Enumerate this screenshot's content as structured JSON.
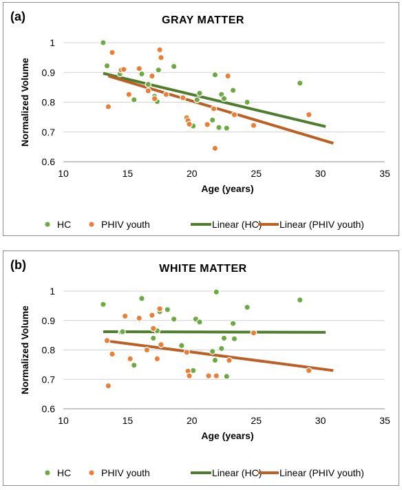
{
  "colors": {
    "hc": "#6aaa3e",
    "phiv": "#ed7d31",
    "hc_line": "#4e7d2c",
    "phiv_line": "#bd5e23",
    "grid": "#d0d0d0",
    "axis": "#8c8c8c"
  },
  "chart_data": [
    {
      "type": "scatter",
      "panel_label": "(a)",
      "title": "GRAY  MATTER",
      "xlabel": "Age (years)",
      "ylabel": "Normalized Volume",
      "xlim": [
        10,
        35
      ],
      "ylim": [
        0.6,
        1.0
      ],
      "x_ticks": [
        "10",
        "15",
        "20",
        "25",
        "30",
        "35"
      ],
      "y_ticks": [
        "0.6",
        "0.7",
        "0.8",
        "0.9",
        "1"
      ],
      "grid": "horizontal",
      "legend_position": "bottom",
      "legend": [
        "HC",
        "PHIV youth",
        "Linear (HC)",
        "Linear (PHIV youth)"
      ],
      "series": [
        {
          "name": "HC",
          "kind": "markers",
          "points": [
            [
              13.1,
              1.0
            ],
            [
              13.4,
              0.922
            ],
            [
              14.4,
              0.895
            ],
            [
              15.5,
              0.808
            ],
            [
              16.1,
              0.895
            ],
            [
              16.6,
              0.86
            ],
            [
              17.1,
              0.82
            ],
            [
              17.3,
              0.802
            ],
            [
              17.4,
              0.908
            ],
            [
              18.6,
              0.92
            ],
            [
              20.1,
              0.72
            ],
            [
              20.4,
              0.808
            ],
            [
              20.6,
              0.83
            ],
            [
              21.6,
              0.74
            ],
            [
              21.8,
              0.892
            ],
            [
              22.1,
              0.715
            ],
            [
              22.3,
              0.826
            ],
            [
              22.5,
              0.812
            ],
            [
              22.7,
              0.713
            ],
            [
              23.2,
              0.84
            ],
            [
              24.3,
              0.8
            ],
            [
              28.4,
              0.864
            ]
          ]
        },
        {
          "name": "PHIV youth",
          "kind": "markers",
          "points": [
            [
              13.5,
              0.785
            ],
            [
              13.8,
              0.967
            ],
            [
              14.5,
              0.908
            ],
            [
              14.7,
              0.91
            ],
            [
              15.1,
              0.826
            ],
            [
              15.9,
              0.913
            ],
            [
              16.6,
              0.838
            ],
            [
              16.9,
              0.888
            ],
            [
              17.1,
              0.812
            ],
            [
              17.5,
              0.976
            ],
            [
              17.6,
              0.95
            ],
            [
              18.0,
              0.826
            ],
            [
              19.3,
              0.815
            ],
            [
              19.6,
              0.748
            ],
            [
              19.7,
              0.738
            ],
            [
              19.8,
              0.726
            ],
            [
              21.2,
              0.725
            ],
            [
              21.7,
              0.778
            ],
            [
              21.8,
              0.645
            ],
            [
              22.8,
              0.888
            ],
            [
              23.3,
              0.758
            ],
            [
              24.8,
              0.722
            ],
            [
              29.1,
              0.758
            ]
          ]
        },
        {
          "name": "Linear (HC)",
          "kind": "line",
          "points": [
            [
              13.1,
              0.897
            ],
            [
              30.4,
              0.718
            ]
          ]
        },
        {
          "name": "Linear (PHIV youth)",
          "kind": "line",
          "points": [
            [
              13.5,
              0.888
            ],
            [
              31.0,
              0.662
            ]
          ]
        }
      ]
    },
    {
      "type": "scatter",
      "panel_label": "(b)",
      "title": "WHITE  MATTER",
      "xlabel": "Age (years)",
      "ylabel": "Normalized Volume",
      "xlim": [
        10,
        35
      ],
      "ylim": [
        0.6,
        1.0
      ],
      "x_ticks": [
        "10",
        "15",
        "20",
        "25",
        "30",
        "35"
      ],
      "y_ticks": [
        "0.6",
        "0.7",
        "0.8",
        "0.9",
        "1"
      ],
      "grid": "horizontal",
      "legend_position": "bottom",
      "legend": [
        "HC",
        "PHIV youth",
        "Linear (HC)",
        "Linear (PHIV youth)"
      ],
      "series": [
        {
          "name": "HC",
          "kind": "markers",
          "points": [
            [
              13.1,
              0.955
            ],
            [
              14.5,
              0.86
            ],
            [
              14.6,
              0.862
            ],
            [
              15.5,
              0.748
            ],
            [
              16.1,
              0.975
            ],
            [
              17.0,
              0.84
            ],
            [
              17.3,
              0.865
            ],
            [
              17.5,
              0.93
            ],
            [
              18.1,
              0.937
            ],
            [
              18.6,
              0.905
            ],
            [
              19.2,
              0.815
            ],
            [
              20.1,
              0.73
            ],
            [
              20.3,
              0.905
            ],
            [
              20.6,
              0.895
            ],
            [
              21.6,
              0.795
            ],
            [
              21.8,
              0.765
            ],
            [
              21.9,
              0.997
            ],
            [
              22.3,
              0.805
            ],
            [
              22.5,
              0.84
            ],
            [
              22.7,
              0.71
            ],
            [
              23.2,
              0.89
            ],
            [
              23.3,
              0.838
            ],
            [
              24.3,
              0.945
            ],
            [
              24.8,
              0.86
            ],
            [
              28.4,
              0.97
            ]
          ]
        },
        {
          "name": "PHIV youth",
          "kind": "markers",
          "points": [
            [
              13.4,
              0.832
            ],
            [
              13.5,
              0.678
            ],
            [
              13.8,
              0.786
            ],
            [
              14.8,
              0.915
            ],
            [
              15.2,
              0.77
            ],
            [
              15.9,
              0.908
            ],
            [
              16.5,
              0.8
            ],
            [
              16.9,
              0.918
            ],
            [
              17.0,
              0.873
            ],
            [
              17.3,
              0.77
            ],
            [
              17.5,
              0.94
            ],
            [
              17.6,
              0.818
            ],
            [
              19.6,
              0.792
            ],
            [
              19.7,
              0.728
            ],
            [
              19.8,
              0.712
            ],
            [
              21.3,
              0.712
            ],
            [
              21.9,
              0.712
            ],
            [
              22.9,
              0.765
            ],
            [
              24.8,
              0.858
            ],
            [
              29.1,
              0.73
            ]
          ]
        },
        {
          "name": "Linear (HC)",
          "kind": "line",
          "points": [
            [
              13.1,
              0.862
            ],
            [
              30.4,
              0.86
            ]
          ]
        },
        {
          "name": "Linear (PHIV youth)",
          "kind": "line",
          "points": [
            [
              13.5,
              0.83
            ],
            [
              31.0,
              0.73
            ]
          ]
        }
      ]
    }
  ]
}
